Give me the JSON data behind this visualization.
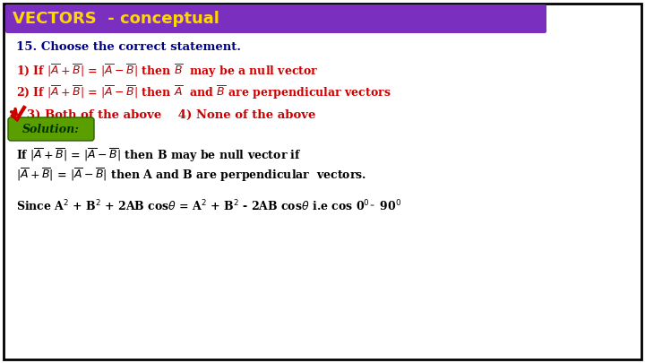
{
  "title": "VECTORS  - conceptual",
  "title_bg": "#7B2FBE",
  "title_color": "#FFD700",
  "question_text": "15. Choose the correct statement.",
  "question_color": "#00008B",
  "lines_color": "#CC0000",
  "options_color": "#CC0000",
  "solution_label": "Solution:",
  "solution_bg": "#5A9E00",
  "sol_color": "#000000",
  "bg_color": "#FFFFFF",
  "border_color": "#000000",
  "fig_w": 7.2,
  "fig_h": 4.05,
  "dpi": 100
}
